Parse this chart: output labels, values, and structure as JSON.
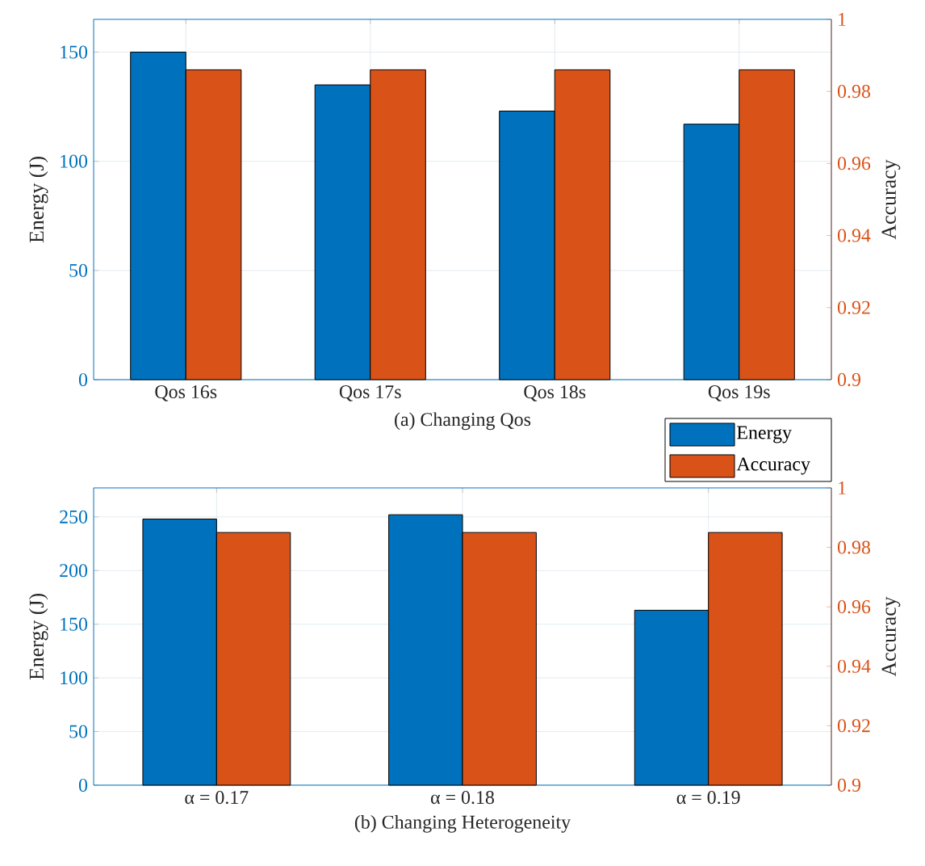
{
  "chart_data": [
    {
      "type": "bar",
      "xlabel": "(a) Changing Qos",
      "ylabel": "Energy (J)",
      "y2label": "Accuracy",
      "categories": [
        "Qos 16s",
        "Qos 17s",
        "Qos 18s",
        "Qos 19s"
      ],
      "series": [
        {
          "color": "#0072bd",
          "values": [
            150,
            135,
            123,
            117
          ]
        },
        {
          "color": "#d95319",
          "axis": "y2",
          "values": [
            0.986,
            0.986,
            0.986,
            0.986
          ]
        }
      ],
      "ylim": [
        0,
        165
      ],
      "yticks": [
        0,
        50,
        100,
        150
      ],
      "y2lim": [
        0.9,
        1
      ],
      "y2ticks": [
        0.9,
        0.92,
        0.94,
        0.96,
        0.98,
        1
      ],
      "grid": true
    },
    {
      "type": "bar",
      "xlabel": "(b) Changing Heterogeneity",
      "ylabel": "Energy (J)",
      "y2label": "Accuracy",
      "categories": [
        "α = 0.17",
        "α = 0.18",
        "α = 0.19"
      ],
      "series": [
        {
          "name": "Energy",
          "color": "#0072bd",
          "values": [
            248,
            252,
            163
          ]
        },
        {
          "name": "Accuracy",
          "color": "#d95319",
          "axis": "y2",
          "values": [
            0.985,
            0.985,
            0.985
          ]
        }
      ],
      "ylim": [
        0,
        277
      ],
      "yticks": [
        0,
        50,
        100,
        150,
        200,
        250
      ],
      "y2lim": [
        0.9,
        1
      ],
      "y2ticks": [
        0.9,
        0.92,
        0.94,
        0.96,
        0.98,
        1
      ],
      "grid": true,
      "legend": "top right"
    }
  ]
}
